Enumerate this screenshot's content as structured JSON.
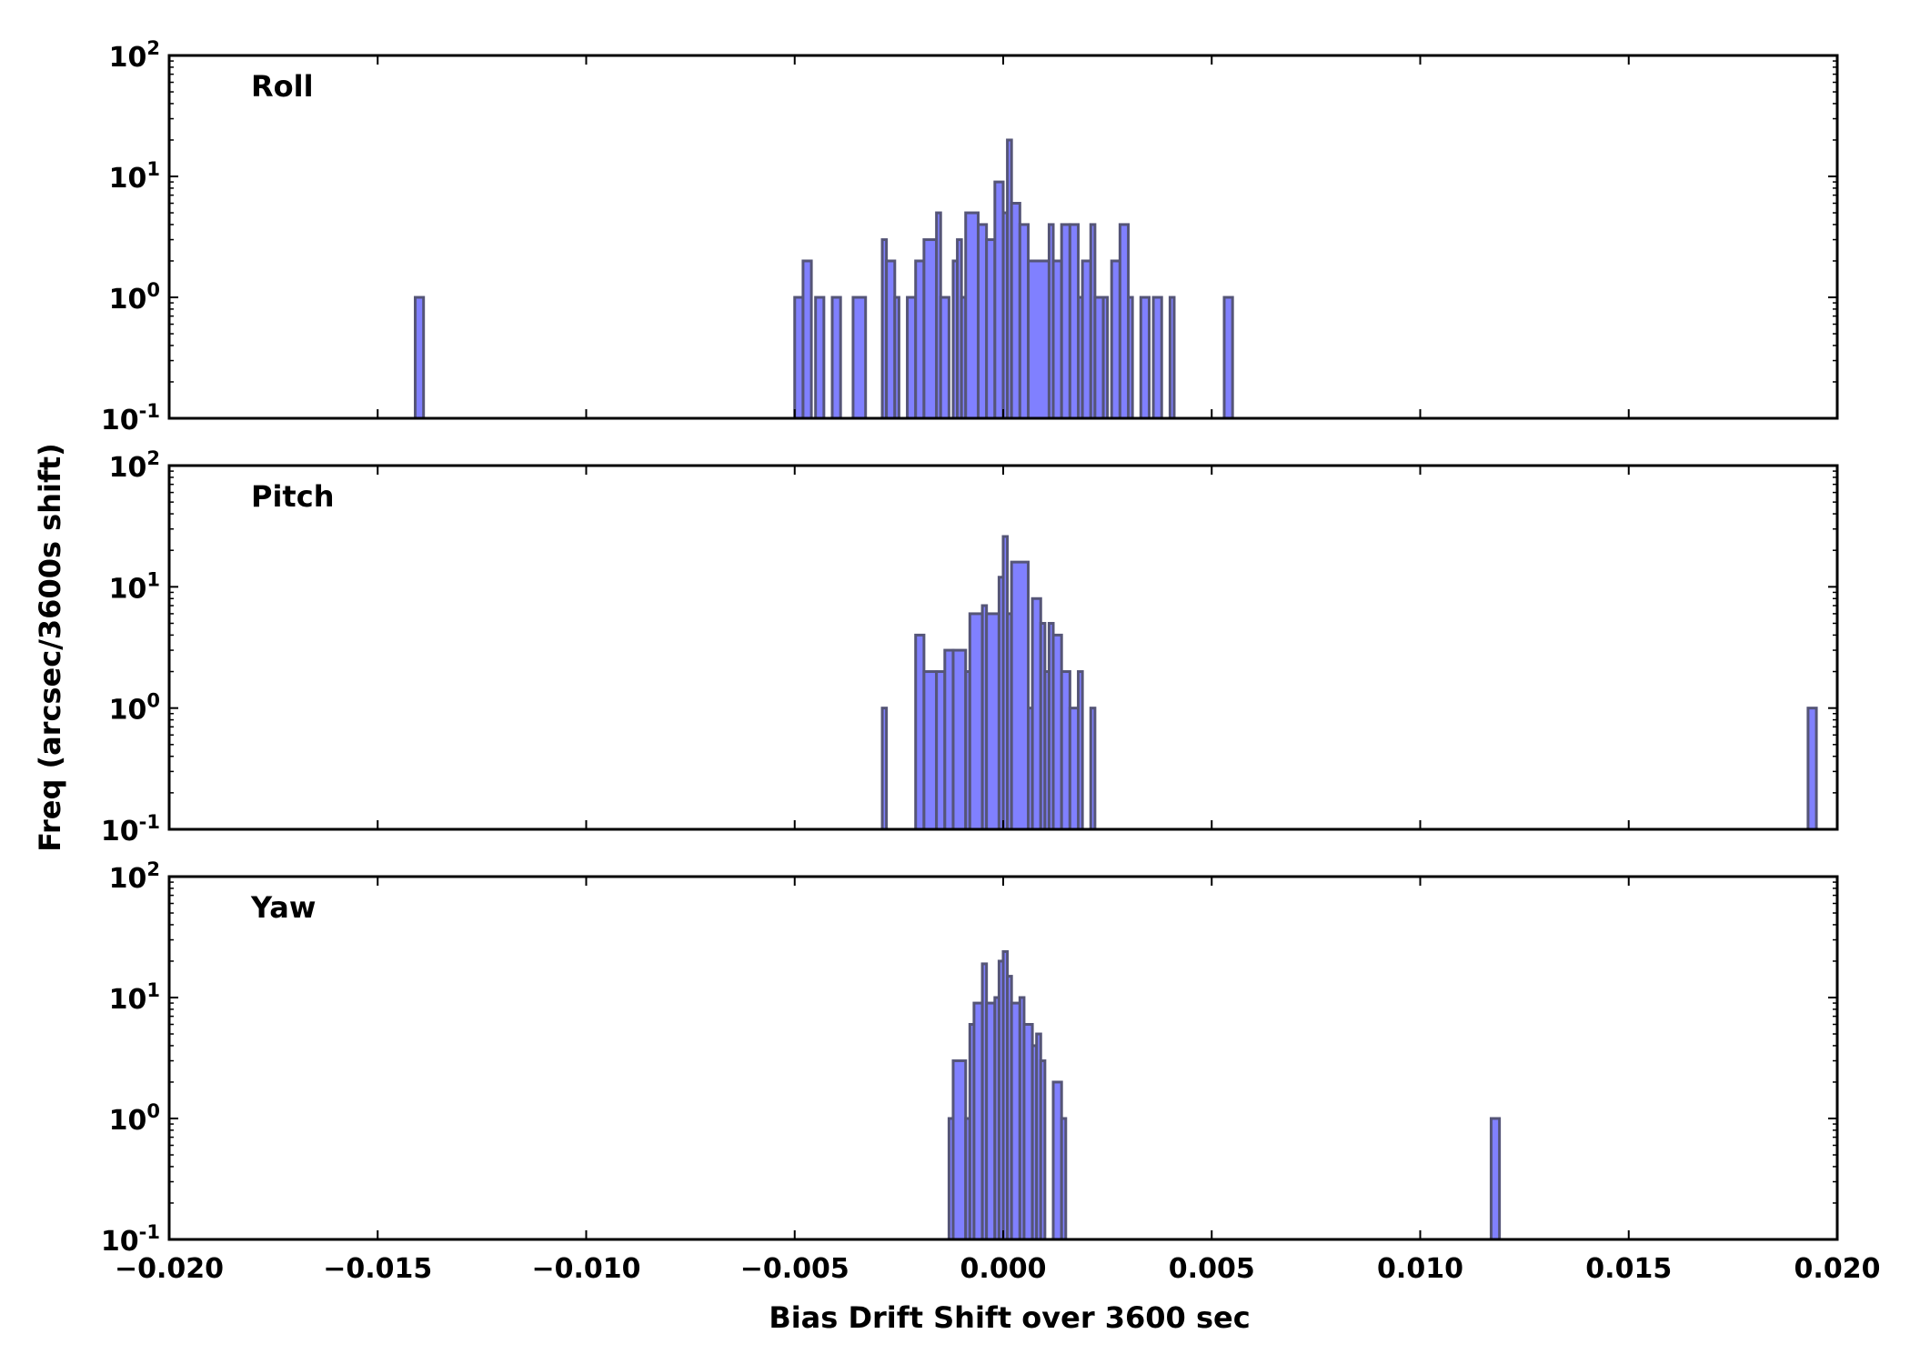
{
  "chart_data": {
    "type": "histogram",
    "xlabel": "Bias Drift Shift over 3600 sec",
    "ylabel": "Freq (arcsec/3600s shift)",
    "xlim": [
      -0.02,
      0.02
    ],
    "ylim": [
      0.1,
      100
    ],
    "yscale": "log",
    "xticks": [
      "−0.020",
      "−0.015",
      "−0.010",
      "−0.005",
      "0.000",
      "0.005",
      "0.010",
      "0.015",
      "0.020"
    ],
    "yticks": [
      {
        "base": "10",
        "exp": "2"
      },
      {
        "base": "10",
        "exp": "1"
      },
      {
        "base": "10",
        "exp": "0"
      },
      {
        "base": "10",
        "exp": "-1"
      }
    ],
    "bar_color": "#8080ff",
    "edge_color": "#555577",
    "panels": [
      {
        "name": "Roll",
        "bars": [
          {
            "x0": -0.0141,
            "x1": -0.0139,
            "y": 1
          },
          {
            "x0": -0.005,
            "x1": -0.0048,
            "y": 1
          },
          {
            "x0": -0.0048,
            "x1": -0.0046,
            "y": 2
          },
          {
            "x0": -0.0045,
            "x1": -0.0043,
            "y": 1
          },
          {
            "x0": -0.0041,
            "x1": -0.0039,
            "y": 1
          },
          {
            "x0": -0.0036,
            "x1": -0.0033,
            "y": 1
          },
          {
            "x0": -0.0029,
            "x1": -0.0028,
            "y": 3
          },
          {
            "x0": -0.0028,
            "x1": -0.0026,
            "y": 2
          },
          {
            "x0": -0.0026,
            "x1": -0.0025,
            "y": 1
          },
          {
            "x0": -0.0023,
            "x1": -0.0021,
            "y": 1
          },
          {
            "x0": -0.0021,
            "x1": -0.0019,
            "y": 2
          },
          {
            "x0": -0.0019,
            "x1": -0.0016,
            "y": 3
          },
          {
            "x0": -0.0016,
            "x1": -0.0015,
            "y": 5
          },
          {
            "x0": -0.0015,
            "x1": -0.0013,
            "y": 1
          },
          {
            "x0": -0.0012,
            "x1": -0.0011,
            "y": 2
          },
          {
            "x0": -0.0011,
            "x1": -0.001,
            "y": 3
          },
          {
            "x0": -0.001,
            "x1": -0.0009,
            "y": 1
          },
          {
            "x0": -0.0009,
            "x1": -0.0006,
            "y": 5
          },
          {
            "x0": -0.0006,
            "x1": -0.0004,
            "y": 4
          },
          {
            "x0": -0.0004,
            "x1": -0.0002,
            "y": 3
          },
          {
            "x0": -0.0002,
            "x1": 0.0,
            "y": 9
          },
          {
            "x0": 0.0,
            "x1": 0.0001,
            "y": 5
          },
          {
            "x0": 0.0001,
            "x1": 0.0002,
            "y": 20
          },
          {
            "x0": 0.0002,
            "x1": 0.0004,
            "y": 6
          },
          {
            "x0": 0.0004,
            "x1": 0.0006,
            "y": 4
          },
          {
            "x0": 0.0006,
            "x1": 0.0011,
            "y": 2
          },
          {
            "x0": 0.0011,
            "x1": 0.0012,
            "y": 4
          },
          {
            "x0": 0.0012,
            "x1": 0.0014,
            "y": 2
          },
          {
            "x0": 0.0014,
            "x1": 0.0016,
            "y": 4
          },
          {
            "x0": 0.0016,
            "x1": 0.0018,
            "y": 4
          },
          {
            "x0": 0.0018,
            "x1": 0.0019,
            "y": 1
          },
          {
            "x0": 0.0019,
            "x1": 0.0021,
            "y": 2
          },
          {
            "x0": 0.0021,
            "x1": 0.0022,
            "y": 4
          },
          {
            "x0": 0.0022,
            "x1": 0.0024,
            "y": 1
          },
          {
            "x0": 0.0024,
            "x1": 0.0025,
            "y": 1
          },
          {
            "x0": 0.0026,
            "x1": 0.0028,
            "y": 2
          },
          {
            "x0": 0.0028,
            "x1": 0.003,
            "y": 4
          },
          {
            "x0": 0.003,
            "x1": 0.0031,
            "y": 1
          },
          {
            "x0": 0.0033,
            "x1": 0.0035,
            "y": 1
          },
          {
            "x0": 0.0036,
            "x1": 0.0038,
            "y": 1
          },
          {
            "x0": 0.004,
            "x1": 0.0041,
            "y": 1
          },
          {
            "x0": 0.0053,
            "x1": 0.0055,
            "y": 1
          }
        ]
      },
      {
        "name": "Pitch",
        "bars": [
          {
            "x0": -0.0029,
            "x1": -0.0028,
            "y": 1
          },
          {
            "x0": -0.0021,
            "x1": -0.0019,
            "y": 4
          },
          {
            "x0": -0.0019,
            "x1": -0.0016,
            "y": 2
          },
          {
            "x0": -0.0016,
            "x1": -0.0014,
            "y": 2
          },
          {
            "x0": -0.0014,
            "x1": -0.0012,
            "y": 3
          },
          {
            "x0": -0.0012,
            "x1": -0.0009,
            "y": 3
          },
          {
            "x0": -0.0009,
            "x1": -0.0008,
            "y": 2
          },
          {
            "x0": -0.0008,
            "x1": -0.0005,
            "y": 6
          },
          {
            "x0": -0.0005,
            "x1": -0.0004,
            "y": 7
          },
          {
            "x0": -0.0004,
            "x1": -0.0001,
            "y": 6
          },
          {
            "x0": -0.0001,
            "x1": 0.0,
            "y": 12
          },
          {
            "x0": 0.0,
            "x1": 0.0001,
            "y": 26
          },
          {
            "x0": 0.0001,
            "x1": 0.0002,
            "y": 6
          },
          {
            "x0": 0.0002,
            "x1": 0.0006,
            "y": 16
          },
          {
            "x0": 0.0006,
            "x1": 0.0007,
            "y": 1
          },
          {
            "x0": 0.0007,
            "x1": 0.0009,
            "y": 8
          },
          {
            "x0": 0.0009,
            "x1": 0.001,
            "y": 5
          },
          {
            "x0": 0.001,
            "x1": 0.0011,
            "y": 2
          },
          {
            "x0": 0.0011,
            "x1": 0.0012,
            "y": 5
          },
          {
            "x0": 0.0012,
            "x1": 0.0014,
            "y": 4
          },
          {
            "x0": 0.0014,
            "x1": 0.0016,
            "y": 2
          },
          {
            "x0": 0.0016,
            "x1": 0.0018,
            "y": 1
          },
          {
            "x0": 0.0018,
            "x1": 0.0019,
            "y": 2
          },
          {
            "x0": 0.0021,
            "x1": 0.0022,
            "y": 1
          },
          {
            "x0": 0.0193,
            "x1": 0.0195,
            "y": 1
          }
        ]
      },
      {
        "name": "Yaw",
        "bars": [
          {
            "x0": -0.0013,
            "x1": -0.0012,
            "y": 1
          },
          {
            "x0": -0.0012,
            "x1": -0.0009,
            "y": 3
          },
          {
            "x0": -0.0009,
            "x1": -0.0008,
            "y": 1
          },
          {
            "x0": -0.0008,
            "x1": -0.0007,
            "y": 6
          },
          {
            "x0": -0.0007,
            "x1": -0.0005,
            "y": 9
          },
          {
            "x0": -0.0005,
            "x1": -0.0004,
            "y": 19
          },
          {
            "x0": -0.0004,
            "x1": -0.0002,
            "y": 9
          },
          {
            "x0": -0.0002,
            "x1": -0.0001,
            "y": 10
          },
          {
            "x0": -0.0001,
            "x1": 0.0,
            "y": 20
          },
          {
            "x0": 0.0,
            "x1": 0.0001,
            "y": 24
          },
          {
            "x0": 0.0001,
            "x1": 0.0002,
            "y": 15
          },
          {
            "x0": 0.0002,
            "x1": 0.0004,
            "y": 9
          },
          {
            "x0": 0.0004,
            "x1": 0.0005,
            "y": 10
          },
          {
            "x0": 0.0005,
            "x1": 0.0007,
            "y": 6
          },
          {
            "x0": 0.0007,
            "x1": 0.0008,
            "y": 4
          },
          {
            "x0": 0.0008,
            "x1": 0.0009,
            "y": 5
          },
          {
            "x0": 0.0009,
            "x1": 0.001,
            "y": 3
          },
          {
            "x0": 0.0012,
            "x1": 0.0014,
            "y": 2
          },
          {
            "x0": 0.0014,
            "x1": 0.0015,
            "y": 1
          },
          {
            "x0": 0.0117,
            "x1": 0.0119,
            "y": 1
          }
        ]
      }
    ]
  }
}
